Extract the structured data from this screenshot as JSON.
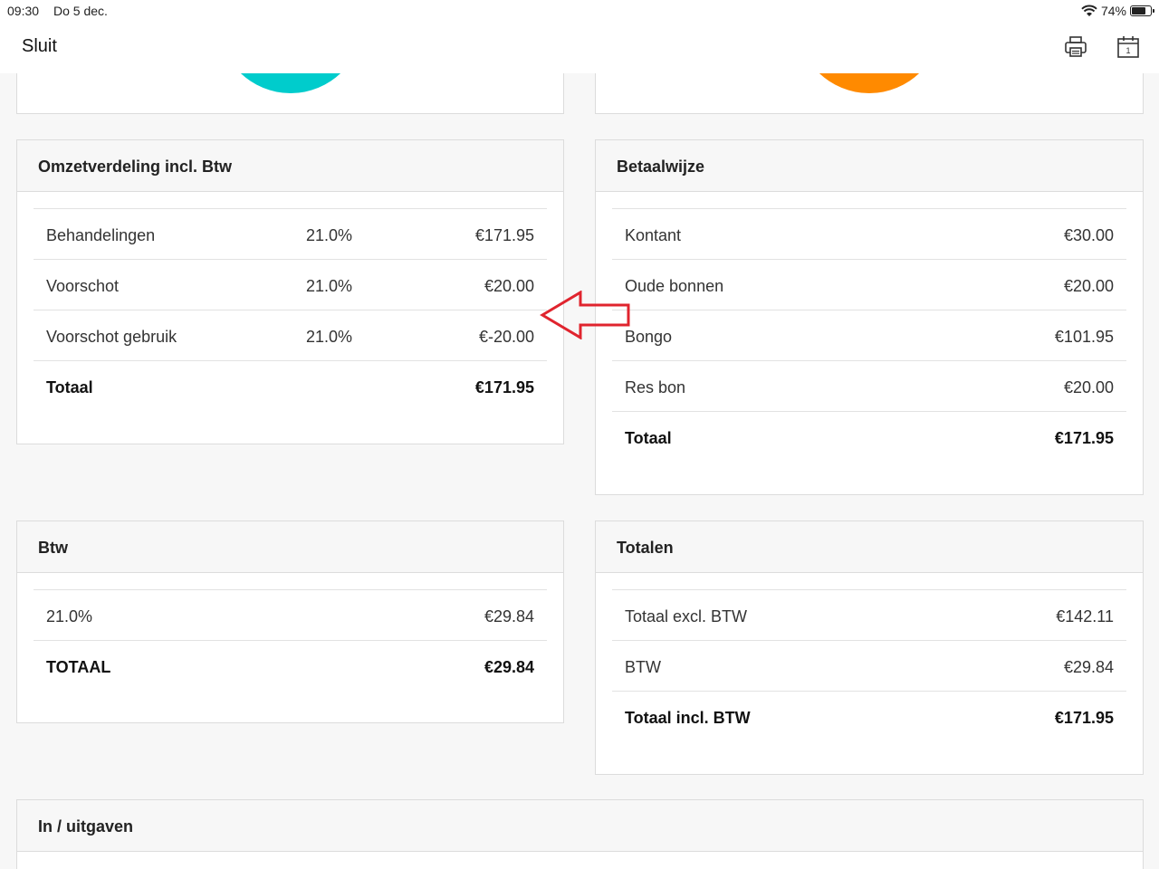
{
  "status_bar": {
    "time": "09:30",
    "date": "Do 5 dec.",
    "battery": "74%",
    "battery_level": 0.74
  },
  "nav": {
    "close_label": "Sluit",
    "print_icon": "printer-icon",
    "calendar_icon": "calendar-icon",
    "calendar_day": "1"
  },
  "colors": {
    "chart_left_slice": "#00cccc",
    "chart_right_slice": "#ff8a00",
    "annotation_arrow": "#e0242e"
  },
  "omzet": {
    "title": "Omzetverdeling incl. Btw",
    "rows": [
      {
        "label": "Behandelingen",
        "pct": "21.0%",
        "amount": "€171.95"
      },
      {
        "label": "Voorschot",
        "pct": "21.0%",
        "amount": "€20.00"
      },
      {
        "label": "Voorschot gebruik",
        "pct": "21.0%",
        "amount": "€-20.00"
      }
    ],
    "total_label": "Totaal",
    "total_amount": "€171.95"
  },
  "betaalwijze": {
    "title": "Betaalwijze",
    "rows": [
      {
        "label": "Kontant",
        "amount": "€30.00"
      },
      {
        "label": "Oude bonnen",
        "amount": "€20.00"
      },
      {
        "label": "Bongo",
        "amount": "€101.95"
      },
      {
        "label": "Res bon",
        "amount": "€20.00"
      }
    ],
    "total_label": "Totaal",
    "total_amount": "€171.95"
  },
  "btw": {
    "title": "Btw",
    "rows": [
      {
        "label": "21.0%",
        "amount": "€29.84"
      }
    ],
    "total_label": "TOTAAL",
    "total_amount": "€29.84"
  },
  "totalen": {
    "title": "Totalen",
    "rows": [
      {
        "label": "Totaal excl. BTW",
        "amount": "€142.11"
      },
      {
        "label": "BTW",
        "amount": "€29.84"
      }
    ],
    "total_label": "Totaal incl. BTW",
    "total_amount": "€171.95"
  },
  "in_uitgaven": {
    "title": "In / uitgaven"
  }
}
